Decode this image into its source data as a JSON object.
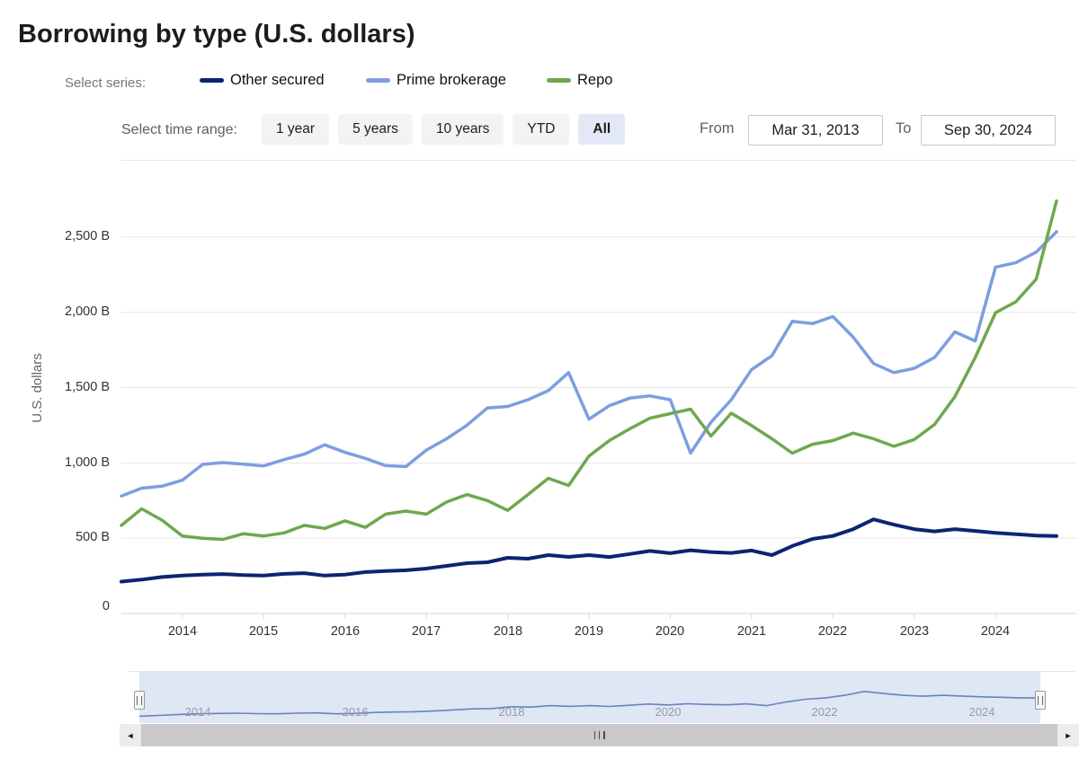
{
  "title": "Borrowing by type (U.S. dollars)",
  "series_selector": {
    "label": "Select series:",
    "items": [
      {
        "label": "Other secured",
        "color": "#0d2472"
      },
      {
        "label": "Prime brokerage",
        "color": "#7d9ee0"
      },
      {
        "label": "Repo",
        "color": "#6fa84f"
      }
    ]
  },
  "time_controls": {
    "label": "Select time range:",
    "buttons": [
      {
        "label": "1 year",
        "selected": false
      },
      {
        "label": "5 years",
        "selected": false
      },
      {
        "label": "10 years",
        "selected": false
      },
      {
        "label": "YTD",
        "selected": false
      },
      {
        "label": "All",
        "selected": true
      }
    ],
    "from_label": "From",
    "from_value": "Mar 31, 2013",
    "to_label": "To",
    "to_value": "Sep 30, 2024"
  },
  "chart_data": {
    "type": "line",
    "title": "Borrowing by type (U.S. dollars)",
    "ylabel": "U.S. dollars",
    "xlabel": "",
    "grid": true,
    "legend_position": "top",
    "ylim": [
      0,
      2800
    ],
    "yticks": {
      "values": [
        0,
        500,
        1000,
        1500,
        2000,
        2500
      ],
      "labels": [
        "0",
        "500 B",
        "1,000 B",
        "1,500 B",
        "2,000 B",
        "2,500 B"
      ]
    },
    "xticks": [
      "2014",
      "2015",
      "2016",
      "2017",
      "2018",
      "2019",
      "2020",
      "2021",
      "2022",
      "2023",
      "2024"
    ],
    "x": [
      "Mar 2013",
      "Jun 2013",
      "Sep 2013",
      "Dec 2013",
      "Mar 2014",
      "Jun 2014",
      "Sep 2014",
      "Dec 2014",
      "Mar 2015",
      "Jun 2015",
      "Sep 2015",
      "Dec 2015",
      "Mar 2016",
      "Jun 2016",
      "Sep 2016",
      "Dec 2016",
      "Mar 2017",
      "Jun 2017",
      "Sep 2017",
      "Dec 2017",
      "Mar 2018",
      "Jun 2018",
      "Sep 2018",
      "Dec 2018",
      "Mar 2019",
      "Jun 2019",
      "Sep 2019",
      "Dec 2019",
      "Mar 2020",
      "Jun 2020",
      "Sep 2020",
      "Dec 2020",
      "Mar 2021",
      "Jun 2021",
      "Sep 2021",
      "Dec 2021",
      "Mar 2022",
      "Jun 2022",
      "Sep 2022",
      "Dec 2022",
      "Mar 2023",
      "Jun 2023",
      "Sep 2023",
      "Dec 2023",
      "Mar 2024",
      "Jun 2024",
      "Sep 2024"
    ],
    "series": [
      {
        "name": "Other secured",
        "color": "#0d2472",
        "values": [
          212,
          225,
          242,
          252,
          258,
          262,
          255,
          252,
          263,
          268,
          252,
          258,
          275,
          282,
          287,
          298,
          316,
          334,
          340,
          370,
          364,
          388,
          376,
          388,
          375,
          395,
          415,
          400,
          420,
          408,
          402,
          418,
          388,
          448,
          495,
          515,
          560,
          625,
          590,
          560,
          545,
          560,
          548,
          535,
          527,
          518,
          515
        ]
      },
      {
        "name": "Prime brokerage",
        "color": "#7d9ee0",
        "values": [
          780,
          832,
          845,
          885,
          990,
          1002,
          992,
          980,
          1022,
          1058,
          1120,
          1070,
          1030,
          982,
          976,
          1085,
          1160,
          1250,
          1365,
          1375,
          1420,
          1480,
          1600,
          1290,
          1380,
          1430,
          1445,
          1420,
          1065,
          1270,
          1420,
          1620,
          1712,
          1940,
          1925,
          1972,
          1835,
          1660,
          1600,
          1628,
          1700,
          1870,
          1810,
          2300,
          2330,
          2400,
          2535
        ]
      },
      {
        "name": "Repo",
        "color": "#6fa84f",
        "values": [
          585,
          695,
          620,
          515,
          500,
          492,
          530,
          515,
          535,
          585,
          565,
          615,
          572,
          660,
          680,
          660,
          740,
          790,
          750,
          685,
          790,
          898,
          850,
          1045,
          1148,
          1226,
          1297,
          1327,
          1357,
          1178,
          1330,
          1248,
          1160,
          1065,
          1124,
          1148,
          1198,
          1160,
          1110,
          1155,
          1255,
          1440,
          1700,
          1998,
          2070,
          2220,
          2740
        ]
      }
    ],
    "navigator_series": "Other secured"
  },
  "navigator": {
    "tick_labels": [
      "2014",
      "2016",
      "2018",
      "2020",
      "2022",
      "2024"
    ]
  },
  "scrollbar": {
    "left_arrow_icon": "◄",
    "right_arrow_icon": "►"
  }
}
